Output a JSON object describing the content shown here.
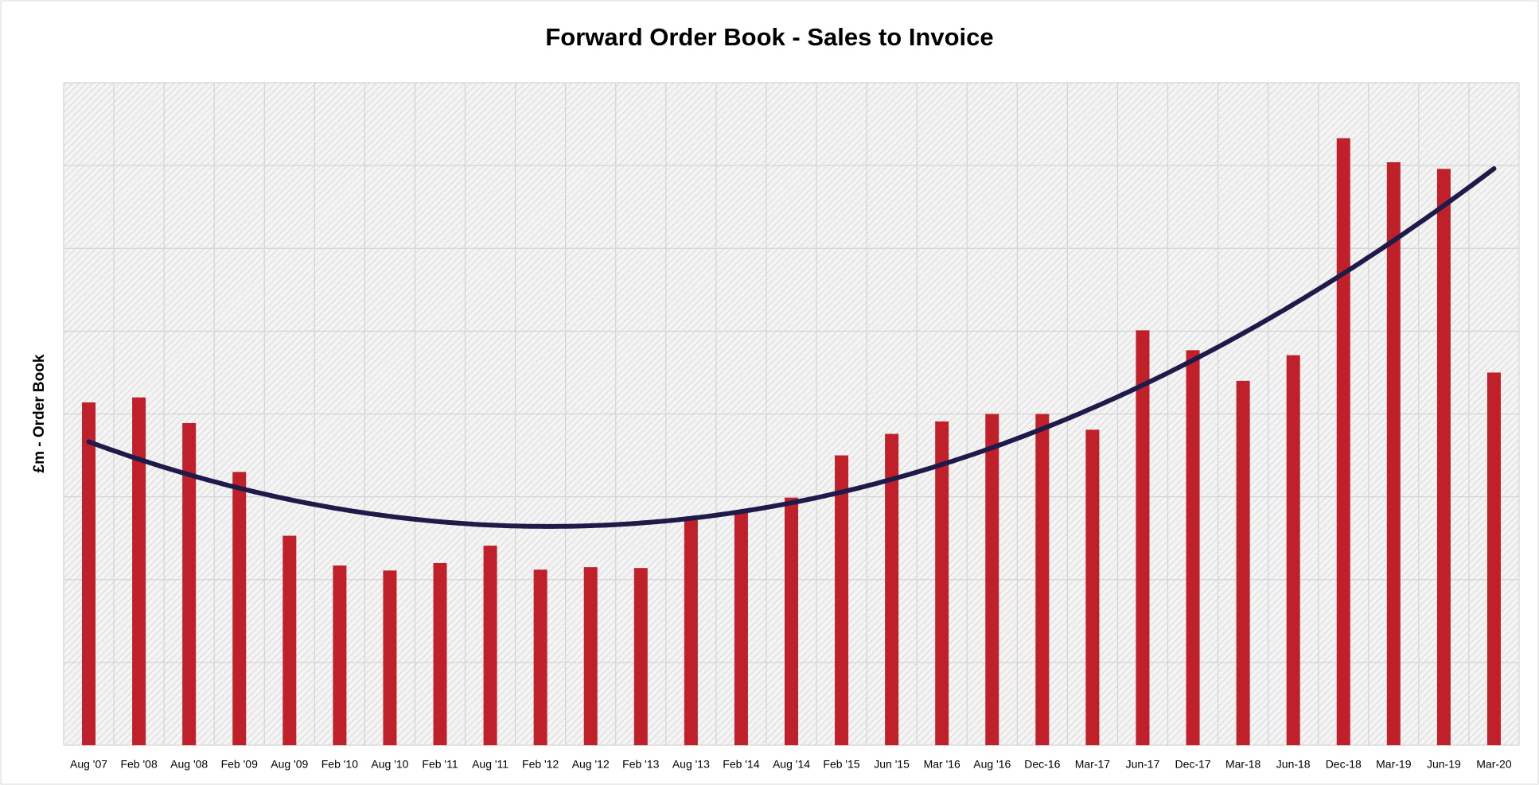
{
  "chart_data": {
    "type": "bar",
    "title": "Forward Order Book - Sales to Invoice",
    "y_label": "£m - Order Book",
    "categories": [
      "Aug '07",
      "Feb '08",
      "Aug '08",
      "Feb '09",
      "Aug '09",
      "Feb '10",
      "Aug '10",
      "Feb '11",
      "Aug '11",
      "Feb '12",
      "Aug '12",
      "Feb '13",
      "Aug '13",
      "Feb '14",
      "Aug '14",
      "Feb '15",
      "Jun '15",
      "Mar '16",
      "Aug '16",
      "Dec-16",
      "Mar-17",
      "Jun-17",
      "Dec-17",
      "Mar-18",
      "Jun-18",
      "Dec-18",
      "Mar-19",
      "Jun-19",
      "Mar-20"
    ],
    "values": [
      4.14,
      4.2,
      3.89,
      3.3,
      2.53,
      2.17,
      2.11,
      2.2,
      2.41,
      2.12,
      2.15,
      2.14,
      2.72,
      2.83,
      2.99,
      3.5,
      3.76,
      3.91,
      4.0,
      4.0,
      3.81,
      5.01,
      4.77,
      4.4,
      4.71,
      7.33,
      7.04,
      6.96,
      4.5
    ],
    "color": "#c0202a",
    "ylim": [
      0,
      8
    ],
    "yticks": [
      0,
      1,
      2,
      3,
      4,
      5,
      6,
      7,
      8
    ],
    "grid": true,
    "trendline": {
      "kind": "polynomial",
      "order": 2,
      "color": "#1e1a4a"
    }
  }
}
